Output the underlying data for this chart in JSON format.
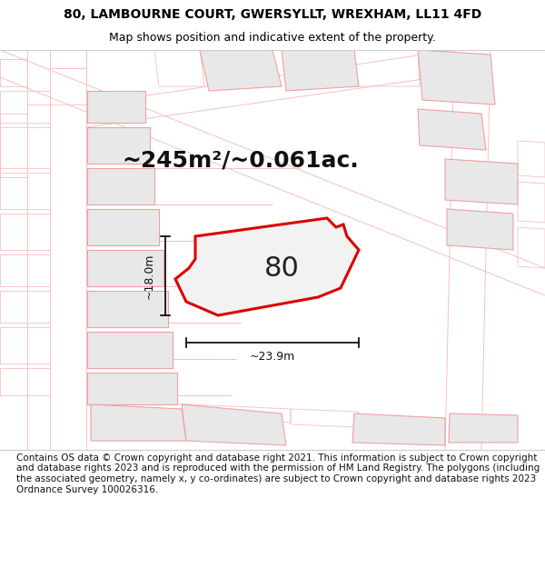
{
  "title_line1": "80, LAMBOURNE COURT, GWERSYLLT, WREXHAM, LL11 4FD",
  "title_line2": "Map shows position and indicative extent of the property.",
  "footer_text": "Contains OS data © Crown copyright and database right 2021. This information is subject to Crown copyright and database rights 2023 and is reproduced with the permission of HM Land Registry. The polygons (including the associated geometry, namely x, y co-ordinates) are subject to Crown copyright and database rights 2023 Ordnance Survey 100026316.",
  "area_text": "~245m²/~0.061ac.",
  "label_text": "80",
  "dim_width": "~23.9m",
  "dim_height": "~18.0m",
  "plot_color_fill": "#f2f2f2",
  "plot_color_edge": "#dd0000",
  "bg_fill": "#e8e8e8",
  "bg_edge": "#f0a0a0",
  "road_color": "#f5c0c0",
  "title_fontsize": 10,
  "subtitle_fontsize": 9,
  "footer_fontsize": 7.5,
  "area_fontsize": 18,
  "label_fontsize": 22,
  "dim_fontsize": 9
}
